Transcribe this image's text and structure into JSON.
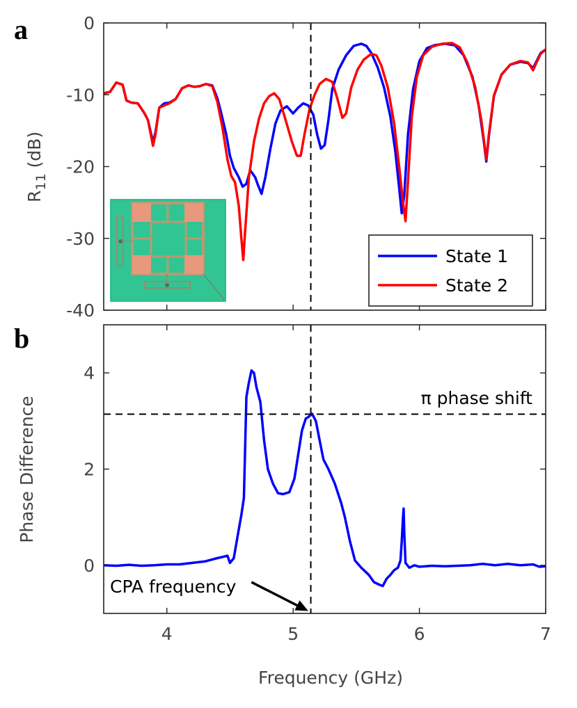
{
  "chart_data": [
    {
      "panel": "a",
      "type": "line",
      "xlabel": "",
      "ylabel": "R",
      "ylabel_sub": "11",
      "ylabel_suffix": " (dB)",
      "xlim": [
        3.5,
        7
      ],
      "ylim": [
        -40,
        0
      ],
      "xticks": [
        4,
        5,
        6,
        7
      ],
      "yticks": [
        0,
        -10,
        -20,
        -30,
        -40
      ],
      "yticklabels": [
        "0",
        "-10",
        "-20",
        "-30",
        "-40"
      ],
      "grid": false,
      "legend_position": "bottom-right",
      "vline_x": 5.14,
      "series": [
        {
          "name": "State 1",
          "color": "#0000ff",
          "points": [
            [
              3.5,
              -9.8
            ],
            [
              3.55,
              -9.6
            ],
            [
              3.6,
              -8.3
            ],
            [
              3.65,
              -8.6
            ],
            [
              3.68,
              -10.8
            ],
            [
              3.72,
              -11.1
            ],
            [
              3.77,
              -11.2
            ],
            [
              3.82,
              -12.5
            ],
            [
              3.85,
              -13.5
            ],
            [
              3.89,
              -16.6
            ],
            [
              3.91,
              -15.2
            ],
            [
              3.94,
              -11.8
            ],
            [
              3.98,
              -11.2
            ],
            [
              4.02,
              -11.1
            ],
            [
              4.07,
              -10.6
            ],
            [
              4.12,
              -9.1
            ],
            [
              4.17,
              -8.7
            ],
            [
              4.22,
              -8.9
            ],
            [
              4.26,
              -8.8
            ],
            [
              4.31,
              -8.5
            ],
            [
              4.36,
              -8.7
            ],
            [
              4.4,
              -10.5
            ],
            [
              4.43,
              -12.5
            ],
            [
              4.47,
              -15.5
            ],
            [
              4.5,
              -18.5
            ],
            [
              4.53,
              -20.2
            ],
            [
              4.57,
              -21.5
            ],
            [
              4.6,
              -22.8
            ],
            [
              4.63,
              -22.4
            ],
            [
              4.66,
              -20.5
            ],
            [
              4.7,
              -21.5
            ],
            [
              4.72,
              -22.5
            ],
            [
              4.75,
              -23.8
            ],
            [
              4.78,
              -21.5
            ],
            [
              4.82,
              -17.5
            ],
            [
              4.86,
              -14
            ],
            [
              4.9,
              -12.2
            ],
            [
              4.95,
              -11.6
            ],
            [
              5.0,
              -12.6
            ],
            [
              5.04,
              -11.8
            ],
            [
              5.08,
              -11.2
            ],
            [
              5.12,
              -11.5
            ],
            [
              5.16,
              -12.8
            ],
            [
              5.19,
              -15.5
            ],
            [
              5.22,
              -17.5
            ],
            [
              5.25,
              -17.0
            ],
            [
              5.28,
              -13.5
            ],
            [
              5.31,
              -9.2
            ],
            [
              5.36,
              -6.5
            ],
            [
              5.42,
              -4.5
            ],
            [
              5.48,
              -3.2
            ],
            [
              5.54,
              -2.9
            ],
            [
              5.58,
              -3.2
            ],
            [
              5.62,
              -4.2
            ],
            [
              5.67,
              -6.2
            ],
            [
              5.72,
              -9
            ],
            [
              5.77,
              -13
            ],
            [
              5.81,
              -18
            ],
            [
              5.84,
              -23
            ],
            [
              5.86,
              -26.5
            ],
            [
              5.88,
              -24
            ],
            [
              5.91,
              -15.5
            ],
            [
              5.95,
              -9.2
            ],
            [
              6.0,
              -5.3
            ],
            [
              6.06,
              -3.5
            ],
            [
              6.12,
              -3.1
            ],
            [
              6.2,
              -2.9
            ],
            [
              6.28,
              -3.1
            ],
            [
              6.35,
              -4.5
            ],
            [
              6.42,
              -7.5
            ],
            [
              6.47,
              -11.5
            ],
            [
              6.51,
              -16.5
            ],
            [
              6.53,
              -19.3
            ],
            [
              6.55,
              -15.8
            ],
            [
              6.59,
              -10.2
            ],
            [
              6.65,
              -7.2
            ],
            [
              6.72,
              -5.8
            ],
            [
              6.8,
              -5.4
            ],
            [
              6.86,
              -5.6
            ],
            [
              6.9,
              -6.3
            ],
            [
              6.92,
              -5.6
            ],
            [
              6.96,
              -4.2
            ],
            [
              7.0,
              -3.7
            ]
          ]
        },
        {
          "name": "State 2",
          "color": "#ff0000",
          "points": [
            [
              3.5,
              -9.8
            ],
            [
              3.55,
              -9.6
            ],
            [
              3.6,
              -8.3
            ],
            [
              3.65,
              -8.6
            ],
            [
              3.68,
              -10.8
            ],
            [
              3.72,
              -11.1
            ],
            [
              3.77,
              -11.2
            ],
            [
              3.82,
              -12.5
            ],
            [
              3.85,
              -13.5
            ],
            [
              3.89,
              -17.1
            ],
            [
              3.91,
              -15.5
            ],
            [
              3.94,
              -11.8
            ],
            [
              3.98,
              -11.5
            ],
            [
              4.02,
              -11.2
            ],
            [
              4.07,
              -10.6
            ],
            [
              4.12,
              -9.1
            ],
            [
              4.17,
              -8.7
            ],
            [
              4.22,
              -8.9
            ],
            [
              4.26,
              -8.8
            ],
            [
              4.31,
              -8.5
            ],
            [
              4.36,
              -8.8
            ],
            [
              4.4,
              -11
            ],
            [
              4.44,
              -14.5
            ],
            [
              4.48,
              -19
            ],
            [
              4.51,
              -21.3
            ],
            [
              4.54,
              -22.2
            ],
            [
              4.57,
              -25.5
            ],
            [
              4.59,
              -30
            ],
            [
              4.605,
              -33
            ],
            [
              4.62,
              -29
            ],
            [
              4.65,
              -21.5
            ],
            [
              4.69,
              -16.5
            ],
            [
              4.73,
              -13.3
            ],
            [
              4.77,
              -11.2
            ],
            [
              4.81,
              -10.2
            ],
            [
              4.85,
              -9.8
            ],
            [
              4.89,
              -10.6
            ],
            [
              4.94,
              -13.5
            ],
            [
              4.99,
              -16.5
            ],
            [
              5.03,
              -18.5
            ],
            [
              5.06,
              -18.5
            ],
            [
              5.09,
              -15.5
            ],
            [
              5.13,
              -12
            ],
            [
              5.17,
              -10
            ],
            [
              5.21,
              -8.5
            ],
            [
              5.26,
              -7.8
            ],
            [
              5.31,
              -8.2
            ],
            [
              5.35,
              -10.5
            ],
            [
              5.39,
              -13.2
            ],
            [
              5.42,
              -12.6
            ],
            [
              5.46,
              -9
            ],
            [
              5.51,
              -6.5
            ],
            [
              5.56,
              -5.1
            ],
            [
              5.62,
              -4.3
            ],
            [
              5.66,
              -4.5
            ],
            [
              5.7,
              -6
            ],
            [
              5.75,
              -9
            ],
            [
              5.8,
              -14
            ],
            [
              5.84,
              -20
            ],
            [
              5.87,
              -25
            ],
            [
              5.89,
              -27.6
            ],
            [
              5.91,
              -22
            ],
            [
              5.94,
              -13
            ],
            [
              5.98,
              -7.5
            ],
            [
              6.03,
              -4.5
            ],
            [
              6.1,
              -3.3
            ],
            [
              6.18,
              -2.9
            ],
            [
              6.26,
              -2.8
            ],
            [
              6.32,
              -3.4
            ],
            [
              6.38,
              -5.5
            ],
            [
              6.44,
              -8.8
            ],
            [
              6.49,
              -13.5
            ],
            [
              6.53,
              -19
            ],
            [
              6.55,
              -15.5
            ],
            [
              6.59,
              -10.1
            ],
            [
              6.65,
              -7.2
            ],
            [
              6.72,
              -5.8
            ],
            [
              6.8,
              -5.3
            ],
            [
              6.86,
              -5.5
            ],
            [
              6.9,
              -6.6
            ],
            [
              6.92,
              -5.8
            ],
            [
              6.96,
              -4.3
            ],
            [
              7.0,
              -3.7
            ]
          ]
        }
      ],
      "inset": "photo of metasurface unit cell (copper square ring with four corner patches on green substrate)"
    },
    {
      "panel": "b",
      "type": "line",
      "xlabel": "Frequency (GHz)",
      "ylabel": "Phase Difference",
      "xlim": [
        3.5,
        7
      ],
      "ylim": [
        -1,
        5
      ],
      "xticks": [
        4,
        5,
        6,
        7
      ],
      "yticks": [
        0,
        2,
        4
      ],
      "grid": false,
      "vline_x": 5.14,
      "hline_y": 3.1416,
      "series": [
        {
          "name": "",
          "color": "#0000ff",
          "points": [
            [
              3.5,
              0.0
            ],
            [
              3.6,
              -0.01
            ],
            [
              3.7,
              0.01
            ],
            [
              3.8,
              -0.01
            ],
            [
              3.9,
              0.0
            ],
            [
              4.0,
              0.02
            ],
            [
              4.1,
              0.02
            ],
            [
              4.2,
              0.05
            ],
            [
              4.3,
              0.08
            ],
            [
              4.4,
              0.15
            ],
            [
              4.45,
              0.18
            ],
            [
              4.48,
              0.2
            ],
            [
              4.5,
              0.05
            ],
            [
              4.53,
              0.15
            ],
            [
              4.56,
              0.6
            ],
            [
              4.59,
              1.05
            ],
            [
              4.61,
              1.4
            ],
            [
              4.63,
              3.5
            ],
            [
              4.65,
              3.8
            ],
            [
              4.67,
              4.05
            ],
            [
              4.69,
              4.0
            ],
            [
              4.71,
              3.7
            ],
            [
              4.74,
              3.4
            ],
            [
              4.77,
              2.6
            ],
            [
              4.8,
              2.0
            ],
            [
              4.84,
              1.7
            ],
            [
              4.88,
              1.5
            ],
            [
              4.92,
              1.48
            ],
            [
              4.97,
              1.52
            ],
            [
              5.01,
              1.8
            ],
            [
              5.04,
              2.3
            ],
            [
              5.07,
              2.8
            ],
            [
              5.1,
              3.05
            ],
            [
              5.12,
              3.08
            ],
            [
              5.15,
              3.15
            ],
            [
              5.18,
              3.0
            ],
            [
              5.21,
              2.6
            ],
            [
              5.24,
              2.2
            ],
            [
              5.28,
              2.0
            ],
            [
              5.33,
              1.7
            ],
            [
              5.38,
              1.3
            ],
            [
              5.41,
              1.0
            ],
            [
              5.45,
              0.5
            ],
            [
              5.49,
              0.1
            ],
            [
              5.54,
              -0.05
            ],
            [
              5.6,
              -0.2
            ],
            [
              5.64,
              -0.35
            ],
            [
              5.68,
              -0.4
            ],
            [
              5.71,
              -0.43
            ],
            [
              5.74,
              -0.28
            ],
            [
              5.77,
              -0.2
            ],
            [
              5.8,
              -0.1
            ],
            [
              5.83,
              -0.05
            ],
            [
              5.85,
              0.1
            ],
            [
              5.86,
              0.5
            ],
            [
              5.87,
              1.0
            ],
            [
              5.875,
              1.18
            ],
            [
              5.88,
              0.7
            ],
            [
              5.89,
              0.05
            ],
            [
              5.92,
              -0.05
            ],
            [
              5.96,
              0.0
            ],
            [
              6.0,
              -0.03
            ],
            [
              6.1,
              -0.01
            ],
            [
              6.2,
              -0.02
            ],
            [
              6.3,
              -0.01
            ],
            [
              6.4,
              0.0
            ],
            [
              6.5,
              0.03
            ],
            [
              6.6,
              0.0
            ],
            [
              6.7,
              0.03
            ],
            [
              6.8,
              0.0
            ],
            [
              6.9,
              0.02
            ],
            [
              6.95,
              -0.03
            ],
            [
              7.0,
              -0.02
            ]
          ]
        }
      ],
      "annotations": {
        "hline_text": "π phase shift",
        "arrow_text": "CPA frequency",
        "arrow_from": [
          4.67,
          -0.35
        ],
        "arrow_to": [
          5.12,
          -0.95
        ]
      }
    }
  ],
  "panel_labels": {
    "a": "a",
    "b": "b"
  },
  "legend": [
    "State 1",
    "State 2"
  ]
}
